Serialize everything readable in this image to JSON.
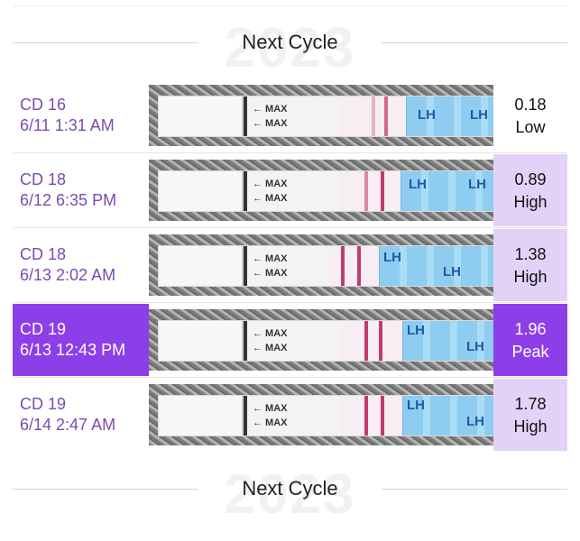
{
  "header": {
    "title": "Next Cycle",
    "year": "2023"
  },
  "footer": {
    "title": "Next Cycle",
    "year": "2023"
  },
  "strip": {
    "max_label": "← MAX",
    "brand_text": "LH"
  },
  "tests": [
    {
      "cd": "CD 16",
      "datetime": "6/11 1:31 AM",
      "value": "0.18",
      "level": "Low"
    },
    {
      "cd": "CD 18",
      "datetime": "6/12 6:35 PM",
      "value": "0.89",
      "level": "High"
    },
    {
      "cd": "CD 18",
      "datetime": "6/13 2:02 AM",
      "value": "1.38",
      "level": "High"
    },
    {
      "cd": "CD 19",
      "datetime": "6/13 12:43 PM",
      "value": "1.96",
      "level": "Peak"
    },
    {
      "cd": "CD 19",
      "datetime": "6/14 2:47 AM",
      "value": "1.78",
      "level": "High"
    }
  ],
  "colors": {
    "accent": "#8c3fe8",
    "highlight": "#e2d2f8",
    "date_text": "#7b4bb0",
    "test_line": "#c23a72"
  }
}
